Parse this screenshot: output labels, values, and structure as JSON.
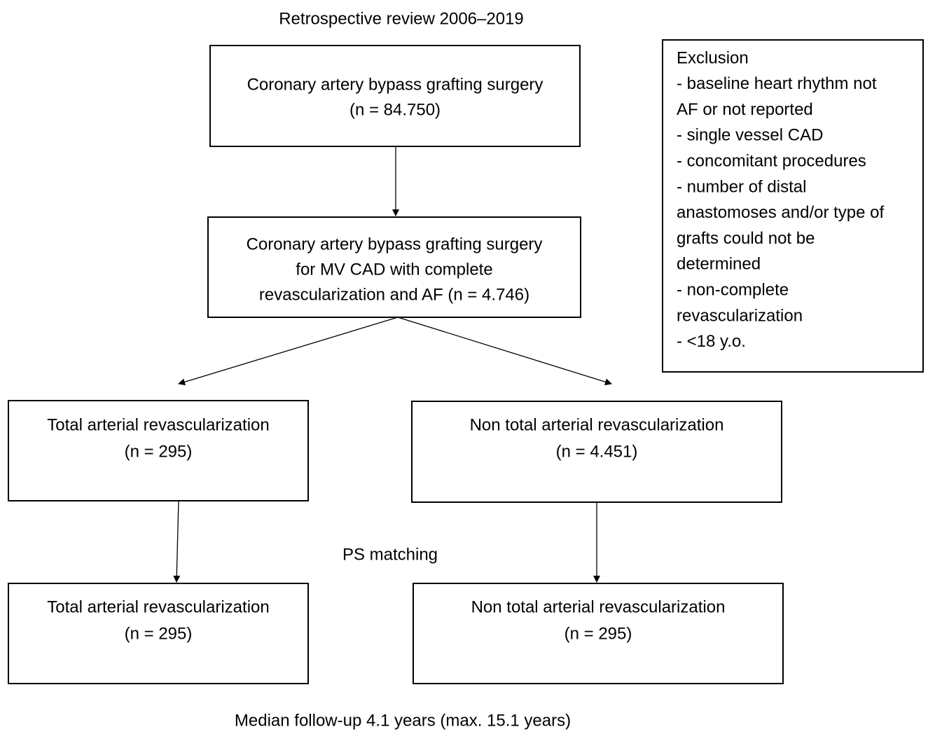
{
  "title": "Retrospective review 2006–2019",
  "nodes": [
    {
      "lines": [
        "Coronary artery bypass grafting surgery",
        "(n = 84.750)"
      ]
    },
    {
      "lines": [
        "Coronary artery bypass grafting surgery",
        "for MV CAD with complete",
        "revascularization and AF (n = 4.746)"
      ]
    },
    {
      "lines": [
        "Total arterial revascularization",
        "(n = 295)"
      ]
    },
    {
      "lines": [
        "Non total arterial revascularization",
        "(n = 4.451)"
      ]
    },
    {
      "lines": [
        "Total arterial revascularization",
        "(n = 295)"
      ]
    },
    {
      "lines": [
        "Non total arterial revascularization",
        "(n = 295)"
      ]
    }
  ],
  "exclusion": {
    "lines": [
      "Exclusion",
      "- baseline heart rhythm not",
      "AF or not reported",
      "- single vessel CAD",
      "- concomitant procedures",
      "- number of distal",
      "anastomoses and/or type of",
      "grafts could not be",
      "determined",
      "- non-complete",
      "revascularization",
      "- <18 y.o."
    ]
  },
  "matching_label": "PS matching",
  "footer": "Median follow-up 4.1 years (max. 15.1 years)"
}
